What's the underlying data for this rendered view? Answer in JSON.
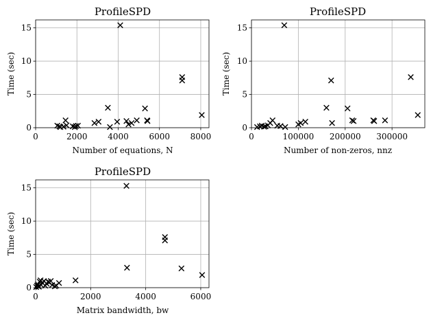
{
  "chart_data": [
    {
      "type": "scatter",
      "title": "ProfileSPD",
      "xlabel": "Number of equations, N",
      "ylabel": "Time (sec)",
      "xlim": [
        0,
        8400
      ],
      "ylim": [
        0,
        16.2
      ],
      "xticks": [
        0,
        2000,
        4000,
        6000,
        8000
      ],
      "yticks": [
        0,
        5,
        10,
        15
      ],
      "grid": true,
      "marker": "x",
      "color": "#000000",
      "x": [
        1050,
        1150,
        1200,
        1350,
        1450,
        1500,
        1800,
        1900,
        1950,
        2050,
        2850,
        3050,
        3500,
        3600,
        3950,
        4100,
        4400,
        4500,
        4650,
        4900,
        5300,
        5400,
        5420,
        7100,
        7100,
        8050
      ],
      "y": [
        0.3,
        0.2,
        0.1,
        0.15,
        1.1,
        0.35,
        0.2,
        0.1,
        0.25,
        0.3,
        0.7,
        0.9,
        3.0,
        0.1,
        0.9,
        15.4,
        1.0,
        0.5,
        0.7,
        1.1,
        2.9,
        1.1,
        1.0,
        7.6,
        7.1,
        1.9
      ]
    },
    {
      "type": "scatter",
      "title": "ProfileSPD",
      "xlabel": "Number of non-zeros, nnz",
      "ylabel": "Time (sec)",
      "xlim": [
        0,
        370000
      ],
      "ylim": [
        0,
        16.2
      ],
      "xticks": [
        0,
        100000,
        200000,
        300000
      ],
      "yticks": [
        0,
        5,
        10,
        15
      ],
      "grid": true,
      "marker": "x",
      "color": "#000000",
      "x": [
        12000,
        18000,
        22000,
        27000,
        30000,
        35000,
        40000,
        45000,
        55000,
        62000,
        72000,
        100000,
        105000,
        115000,
        160000,
        170000,
        172000,
        205000,
        215000,
        218000,
        260000,
        262000,
        285000,
        340000,
        355000,
        70000
      ],
      "y": [
        0.1,
        0.2,
        0.3,
        0.15,
        0.2,
        0.35,
        0.7,
        1.1,
        0.3,
        0.25,
        0.1,
        0.5,
        0.7,
        0.9,
        3.0,
        7.1,
        0.7,
        2.9,
        1.1,
        1.0,
        1.1,
        1.0,
        1.1,
        7.6,
        1.9,
        15.4
      ]
    },
    {
      "type": "scatter",
      "title": "ProfileSPD",
      "xlabel": "Matrix bandwidth, bw",
      "ylabel": "Time (sec)",
      "xlim": [
        0,
        6300
      ],
      "ylim": [
        0,
        16.2
      ],
      "xticks": [
        0,
        2000,
        4000,
        6000
      ],
      "yticks": [
        0,
        5,
        10,
        15
      ],
      "grid": true,
      "marker": "x",
      "color": "#000000",
      "x": [
        20,
        50,
        80,
        100,
        150,
        180,
        200,
        250,
        300,
        350,
        400,
        450,
        500,
        550,
        600,
        700,
        750,
        850,
        1450,
        3300,
        3320,
        4700,
        4700,
        5300,
        6050,
        120
      ],
      "y": [
        0.1,
        0.3,
        0.5,
        0.2,
        0.9,
        1.1,
        0.4,
        0.7,
        1.0,
        0.3,
        0.6,
        0.9,
        0.8,
        1.0,
        0.4,
        0.2,
        0.3,
        0.7,
        1.1,
        15.3,
        3.0,
        7.6,
        7.1,
        2.9,
        1.9,
        0.15
      ]
    }
  ]
}
